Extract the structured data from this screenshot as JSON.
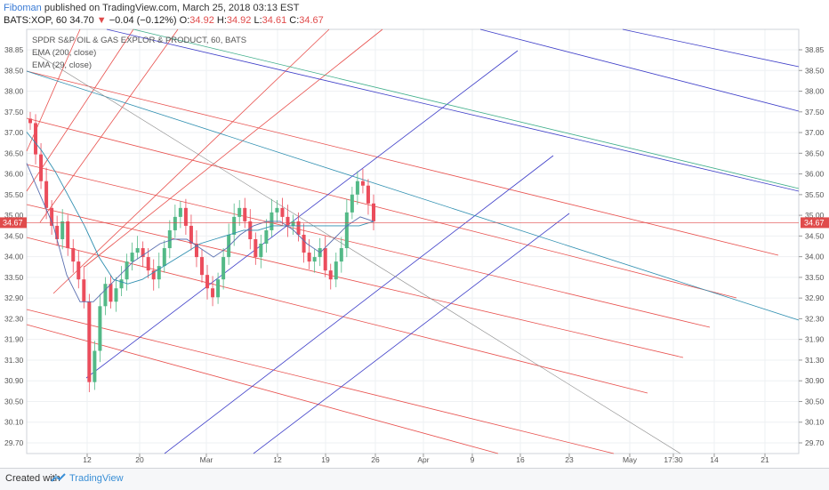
{
  "header": {
    "author": "Fiboman",
    "published": " published on TradingView.com, March 25, 2018 03:13 EST",
    "symbol": "BATS:XOP, 60",
    "price": "34.70",
    "change_arrow": "▼",
    "change": "−0.04 (−0.12%)",
    "o_label": "O:",
    "o": "34.92",
    "h_label": "H:",
    "h": "34.92",
    "l_label": "L:",
    "l": "34.61",
    "c_label": "C:",
    "c": "34.67"
  },
  "legend": {
    "title": "SPDR S&P OIL & GAS EXPLOR & PRODUCT, 60, BATS",
    "ema200": "EMA (200, close)",
    "ema29": "EMA (29, close)"
  },
  "footer": {
    "created": "Created with",
    "brand": "TradingView"
  },
  "colors": {
    "up": "#53b987",
    "down": "#eb4d5c",
    "pitch_red": "#e8504d",
    "pitch_blue": "#3d3dc8",
    "ema200": "#2f8fb0",
    "ema29": "#5a6fb0",
    "price_line": "#e04b4b"
  },
  "chart_data": {
    "type": "candlestick",
    "title": "SPDR S&P OIL & GAS EXPLOR & PRODUCT, 60, BATS",
    "y_ticks": [
      "38.85",
      "38.50",
      "38.00",
      "37.50",
      "37.00",
      "36.50",
      "36.00",
      "35.50",
      "35.00",
      "34.50",
      "34.00",
      "33.50",
      "32.90",
      "32.30",
      "31.90",
      "31.30",
      "30.90",
      "30.50",
      "30.10",
      "29.70"
    ],
    "x_ticks": [
      "12",
      "20",
      "Mar",
      "12",
      "19",
      "26",
      "Apr",
      "9",
      "16",
      "23",
      "May",
      "17:30",
      "14",
      "21"
    ],
    "last_price_label": "34.67",
    "ylim": [
      29.5,
      39.0
    ],
    "close_path": [
      36.9,
      36.2,
      35.6,
      35.0,
      34.6,
      34.3,
      34.7,
      34.1,
      33.8,
      33.4,
      32.9,
      31.1,
      31.8,
      32.8,
      33.3,
      32.9,
      33.2,
      33.4,
      33.8,
      34.0,
      34.1,
      33.9,
      33.6,
      33.4,
      33.7,
      34.1,
      34.5,
      34.8,
      35.0,
      34.6,
      34.2,
      33.9,
      33.5,
      33.2,
      33.0,
      33.4,
      33.9,
      34.4,
      34.8,
      35.0,
      34.7,
      34.3,
      33.9,
      34.2,
      34.5,
      34.9,
      35.0,
      34.8,
      34.6,
      34.7,
      34.4,
      34.0,
      33.8,
      33.9,
      34.1,
      33.6,
      33.4,
      33.8,
      34.1,
      34.9,
      35.3,
      35.6,
      35.5,
      35.1,
      34.7
    ],
    "ema200_path": [
      36.7,
      36.3,
      35.8,
      35.2,
      34.6,
      33.9,
      33.4,
      33.3,
      33.4,
      33.6,
      33.8,
      34.0,
      34.2,
      34.3,
      34.4,
      34.5,
      34.5,
      34.6,
      34.6,
      34.6,
      34.6,
      34.6,
      34.6,
      34.6,
      34.7
    ],
    "ema29_path": [
      36.0,
      35.3,
      34.6,
      33.5,
      32.9,
      32.9,
      33.2,
      33.5,
      33.8,
      34.0,
      34.2,
      34.3,
      34.3,
      34.1,
      33.9,
      34.1,
      34.4,
      34.6,
      34.7,
      34.7,
      34.5,
      34.2,
      34.0,
      34.3,
      34.6,
      34.8,
      34.7
    ]
  }
}
